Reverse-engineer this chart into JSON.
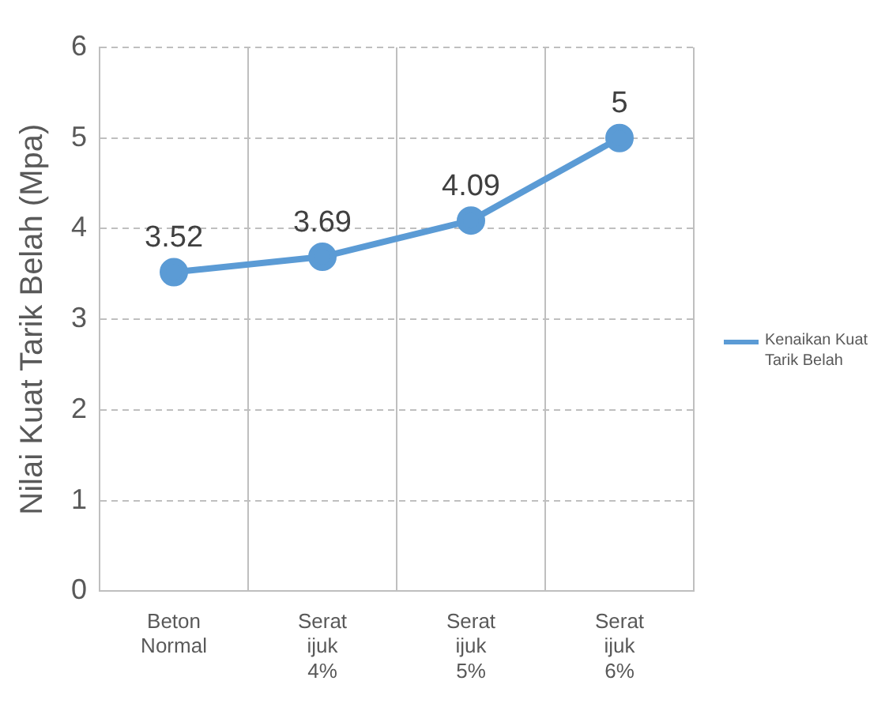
{
  "chart_data": {
    "type": "line",
    "ylabel": "Nilai Kuat Tarik Belah (Mpa)",
    "categories": [
      "Beton Normal",
      "Serat ijuk 4%",
      "Serat ijuk 5%",
      "Serat ijuk 6%"
    ],
    "series": [
      {
        "name": "Kenaikan Kuat Tarik Belah",
        "color": "#5b9bd5",
        "values": [
          3.52,
          3.69,
          4.09,
          5
        ]
      }
    ],
    "ylim": [
      0,
      6
    ],
    "yticks": [
      0,
      1,
      2,
      3,
      4,
      5,
      6
    ],
    "grid": true,
    "legend": "right",
    "marker": "circle",
    "line_style": "solid",
    "data_labels": true
  }
}
